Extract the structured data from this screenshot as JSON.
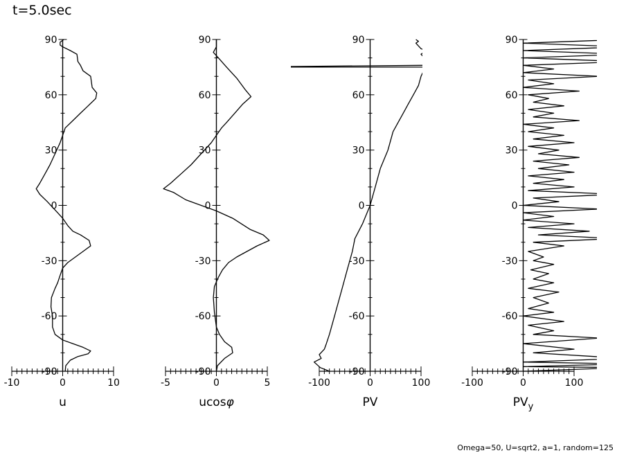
{
  "title": "t=5.0sec",
  "footnote": "Omega=50, U=sqrt2, a=1, random=125",
  "chart_data": [
    {
      "type": "line",
      "xlabel": "u",
      "xlim": [
        -10,
        10
      ],
      "xticks": [
        "-10",
        "0",
        "10"
      ],
      "ylim": [
        -90,
        90
      ],
      "yticks": [
        "-90",
        "-60",
        "-30",
        "0",
        "30",
        "60",
        "90"
      ],
      "series": [
        {
          "points": [
            [
              0.5,
              -90
            ],
            [
              0.6,
              -87
            ],
            [
              1.5,
              -84
            ],
            [
              3,
              -82
            ],
            [
              5,
              -80.5
            ],
            [
              5.5,
              -79
            ],
            [
              4,
              -77
            ],
            [
              2,
              -75
            ],
            [
              0,
              -73
            ],
            [
              -1.5,
              -70
            ],
            [
              -2,
              -66
            ],
            [
              -2,
              -60
            ],
            [
              -2.3,
              -55
            ],
            [
              -2.2,
              -50
            ],
            [
              -1.5,
              -45
            ],
            [
              -1,
              -42
            ],
            [
              -0.5,
              -38
            ],
            [
              0,
              -34
            ],
            [
              1,
              -31
            ],
            [
              2.5,
              -28
            ],
            [
              4,
              -25
            ],
            [
              5.5,
              -22
            ],
            [
              5.2,
              -19
            ],
            [
              3.5,
              -16
            ],
            [
              2,
              -14
            ],
            [
              1,
              -11
            ],
            [
              0,
              -7
            ],
            [
              -1,
              -4
            ],
            [
              -2,
              -1
            ],
            [
              -3,
              2
            ],
            [
              -4.5,
              6
            ],
            [
              -5.2,
              9
            ],
            [
              -4.5,
              12
            ],
            [
              -3.5,
              17
            ],
            [
              -2.5,
              22
            ],
            [
              -1.5,
              28
            ],
            [
              -0.5,
              34
            ],
            [
              0,
              38
            ],
            [
              0.5,
              42
            ],
            [
              2,
              46
            ],
            [
              3.5,
              50
            ],
            [
              5,
              54
            ],
            [
              6.5,
              58
            ],
            [
              6.7,
              61
            ],
            [
              5.8,
              64
            ],
            [
              5.5,
              70
            ],
            [
              4,
              73
            ],
            [
              3.5,
              76
            ],
            [
              3,
              78
            ],
            [
              2.8,
              82
            ],
            [
              1.5,
              84
            ],
            [
              0,
              86
            ],
            [
              -0.5,
              87
            ],
            [
              -0.5,
              88.5
            ],
            [
              0.2,
              90
            ]
          ]
        }
      ]
    },
    {
      "type": "line",
      "xlabel": "ucosφ",
      "xlim": [
        -5,
        5
      ],
      "xticks": [
        "-5",
        "0",
        "5"
      ],
      "ylim": [
        -90,
        90
      ],
      "yticks": [
        "-90",
        "-60",
        "-30",
        "0",
        "30",
        "60",
        "90"
      ],
      "series": [
        {
          "points": [
            [
              0,
              -90
            ],
            [
              0.1,
              -87
            ],
            [
              0.8,
              -83
            ],
            [
              1.6,
              -80
            ],
            [
              1.5,
              -77
            ],
            [
              0.8,
              -74
            ],
            [
              0.3,
              -70
            ],
            [
              0,
              -66
            ],
            [
              -0.2,
              -58
            ],
            [
              -0.3,
              -50
            ],
            [
              -0.2,
              -44
            ],
            [
              0.2,
              -39
            ],
            [
              0.6,
              -35
            ],
            [
              1.2,
              -31
            ],
            [
              2,
              -28
            ],
            [
              3,
              -25
            ],
            [
              4,
              -22
            ],
            [
              5.2,
              -19
            ],
            [
              4.6,
              -16
            ],
            [
              3.3,
              -13
            ],
            [
              1.6,
              -7
            ],
            [
              0,
              -3
            ],
            [
              -1.5,
              0
            ],
            [
              -3,
              3
            ],
            [
              -4.2,
              7
            ],
            [
              -5.2,
              9
            ],
            [
              -4.5,
              12
            ],
            [
              -3.5,
              17
            ],
            [
              -2.5,
              22
            ],
            [
              -1.5,
              28
            ],
            [
              -0.5,
              34
            ],
            [
              0,
              38
            ],
            [
              0.5,
              42
            ],
            [
              1,
              45
            ],
            [
              1.8,
              50
            ],
            [
              2.6,
              55
            ],
            [
              3.4,
              59
            ],
            [
              2.8,
              63
            ],
            [
              2,
              69
            ],
            [
              1,
              75
            ],
            [
              0.2,
              80
            ],
            [
              -0.3,
              83
            ],
            [
              0,
              86
            ],
            [
              0,
              90
            ]
          ]
        }
      ]
    },
    {
      "type": "line",
      "xlabel": "PV",
      "xlim": [
        -100,
        100
      ],
      "xticks": [
        "-100",
        "0",
        "100"
      ],
      "ylim": [
        -90,
        90
      ],
      "yticks": [
        "-90",
        "-60",
        "-30",
        "0",
        "30",
        "60",
        "90"
      ],
      "series": [
        {
          "points": [
            [
              -80,
              -90
            ],
            [
              -98,
              -88
            ],
            [
              -110,
              -85
            ],
            [
              -96,
              -83
            ],
            [
              -100,
              -81
            ],
            [
              -90,
              -78
            ],
            [
              -86,
              -75
            ],
            [
              -80,
              -70
            ],
            [
              -70,
              -60
            ],
            [
              -55,
              -45
            ],
            [
              -45,
              -35
            ],
            [
              -35,
              -25
            ],
            [
              -30,
              -18
            ],
            [
              -15,
              -10
            ],
            [
              0,
              0
            ],
            [
              10,
              10
            ],
            [
              20,
              20
            ],
            [
              35,
              30
            ],
            [
              45,
              40
            ],
            [
              55,
              45
            ],
            [
              65,
              50
            ],
            [
              75,
              55
            ],
            [
              85,
              60
            ],
            [
              95,
              65
            ],
            [
              100,
              70
            ],
            [
              105,
              73
            ],
            [
              108,
              75
            ],
            [
              -300,
              75
            ],
            [
              108,
              76
            ],
            [
              110,
              79
            ],
            [
              100,
              82
            ],
            [
              110,
              84
            ],
            [
              100,
              85
            ],
            [
              90,
              88
            ],
            [
              95,
              89
            ],
            [
              90,
              90
            ]
          ]
        }
      ]
    },
    {
      "type": "line",
      "xlabel": "PVy",
      "xlim": [
        -100,
        100
      ],
      "xticks": [
        "-100",
        "0",
        "100"
      ],
      "ylim": [
        -90,
        90
      ],
      "yticks": [
        "-90",
        "-60",
        "-30",
        "0",
        "30",
        "60",
        "90"
      ],
      "series": [
        {
          "points": [
            [
              0,
              -90
            ],
            [
              200,
              -88
            ],
            [
              0,
              -87.5
            ],
            [
              200,
              -86
            ],
            [
              0,
              -85
            ],
            [
              200,
              -83
            ],
            [
              20,
              -80
            ],
            [
              100,
              -78
            ],
            [
              0,
              -75
            ],
            [
              150,
              -72
            ],
            [
              20,
              -70
            ],
            [
              60,
              -68
            ],
            [
              10,
              -65
            ],
            [
              80,
              -63
            ],
            [
              0,
              -60
            ],
            [
              60,
              -58
            ],
            [
              10,
              -56
            ],
            [
              50,
              -53
            ],
            [
              20,
              -50
            ],
            [
              70,
              -47
            ],
            [
              10,
              -45
            ],
            [
              60,
              -42
            ],
            [
              20,
              -40
            ],
            [
              50,
              -37
            ],
            [
              15,
              -35
            ],
            [
              60,
              -32
            ],
            [
              20,
              -30
            ],
            [
              40,
              -28
            ],
            [
              10,
              -25
            ],
            [
              80,
              -22
            ],
            [
              20,
              -20
            ],
            [
              180,
              -18
            ],
            [
              30,
              -16
            ],
            [
              130,
              -14
            ],
            [
              10,
              -12
            ],
            [
              100,
              -10
            ],
            [
              0,
              -8
            ],
            [
              60,
              -6
            ],
            [
              0,
              -4
            ],
            [
              150,
              -2
            ],
            [
              0,
              0
            ],
            [
              70,
              2
            ],
            [
              20,
              4
            ],
            [
              180,
              6
            ],
            [
              10,
              8
            ],
            [
              100,
              10
            ],
            [
              20,
              12
            ],
            [
              80,
              14
            ],
            [
              10,
              16
            ],
            [
              100,
              18
            ],
            [
              30,
              20
            ],
            [
              90,
              22
            ],
            [
              20,
              24
            ],
            [
              110,
              26
            ],
            [
              30,
              28
            ],
            [
              70,
              30
            ],
            [
              10,
              32
            ],
            [
              100,
              34
            ],
            [
              20,
              36
            ],
            [
              80,
              38
            ],
            [
              10,
              40
            ],
            [
              60,
              42
            ],
            [
              0,
              44
            ],
            [
              110,
              46
            ],
            [
              20,
              48
            ],
            [
              60,
              50
            ],
            [
              10,
              52
            ],
            [
              80,
              54
            ],
            [
              20,
              56
            ],
            [
              50,
              58
            ],
            [
              10,
              60
            ],
            [
              110,
              62
            ],
            [
              0,
              64
            ],
            [
              60,
              66
            ],
            [
              10,
              68
            ],
            [
              150,
              70
            ],
            [
              0,
              72
            ],
            [
              60,
              74
            ],
            [
              0,
              76
            ],
            [
              200,
              78
            ],
            [
              0,
              80
            ],
            [
              200,
              82
            ],
            [
              0,
              84
            ],
            [
              200,
              86
            ],
            [
              0,
              88
            ],
            [
              200,
              90
            ]
          ]
        }
      ]
    }
  ]
}
